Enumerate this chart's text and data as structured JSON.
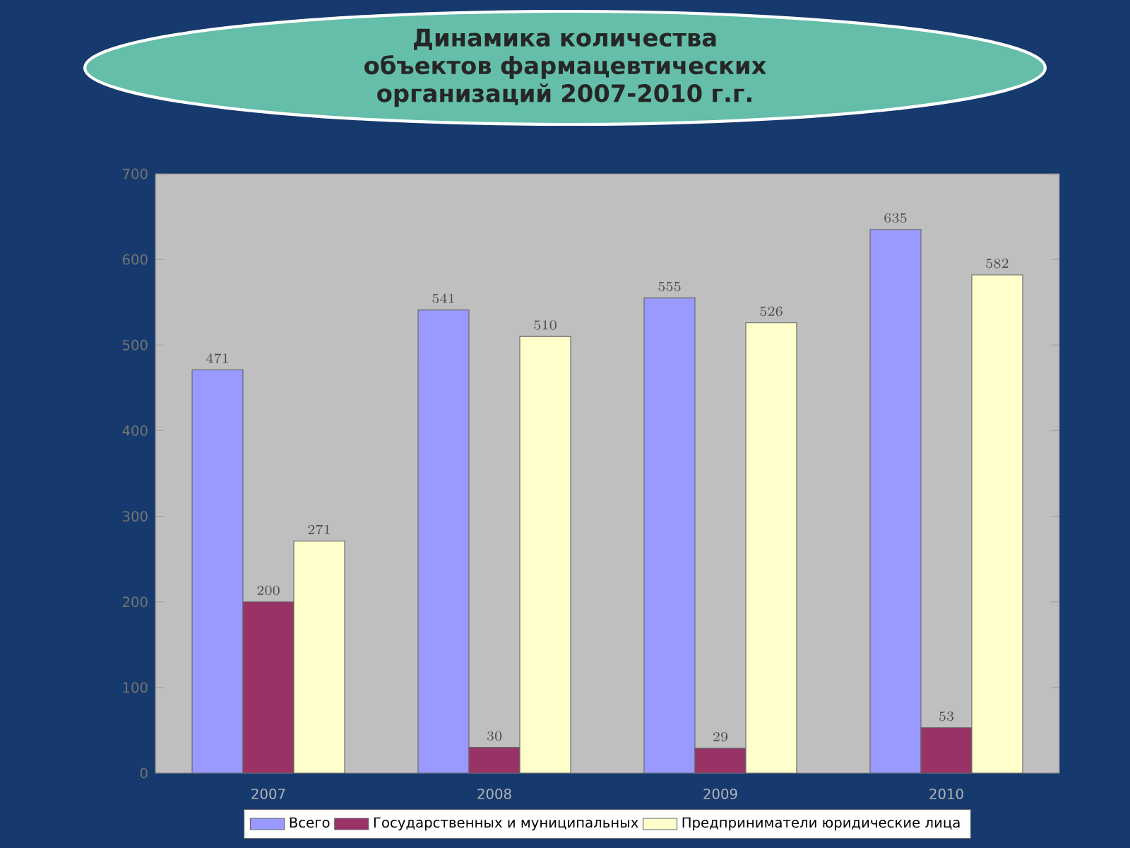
{
  "chart_data": {
    "type": "bar",
    "title": "Динамика количества объектов фармацевтических организаций 2007-2010 г.г.",
    "categories": [
      "2007",
      "2008",
      "2009",
      "2010"
    ],
    "series": [
      {
        "name": "Всего",
        "color": "#9999ff",
        "values": [
          471,
          541,
          555,
          635
        ]
      },
      {
        "name": "Государственных и муниципальных",
        "color": "#993366",
        "values": [
          200,
          30,
          29,
          53
        ]
      },
      {
        "name": "Предприниматели юридические лица",
        "color": "#ffffcc",
        "values": [
          271,
          510,
          526,
          582
        ]
      }
    ],
    "ylim": [
      0,
      700
    ],
    "yticks": [
      0,
      100,
      200,
      300,
      400,
      500,
      600,
      700
    ],
    "data_labels": true,
    "grid": false,
    "legend": "bottom"
  }
}
